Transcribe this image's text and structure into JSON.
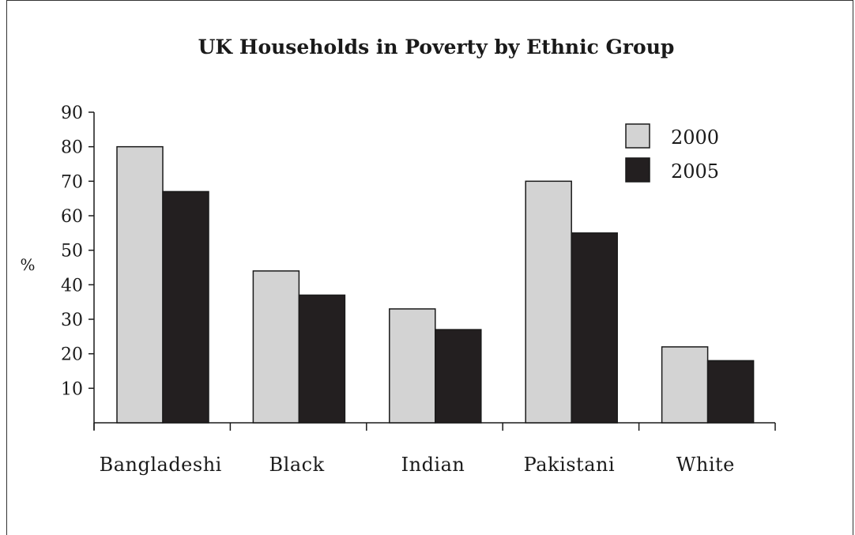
{
  "chart_data": {
    "type": "bar",
    "title": "UK Households in Poverty by Ethnic Group",
    "ylabel": "%",
    "xlabel": "",
    "categories": [
      "Bangladeshi",
      "Black",
      "Indian",
      "Pakistani",
      "White"
    ],
    "series": [
      {
        "name": "2000",
        "values": [
          80,
          44,
          33,
          70,
          22
        ],
        "color": "#d3d3d3"
      },
      {
        "name": "2005",
        "values": [
          67,
          37,
          27,
          55,
          18
        ],
        "color": "#231f20"
      }
    ],
    "ylim": [
      0,
      90
    ],
    "yticks": [
      10,
      20,
      30,
      40,
      50,
      60,
      70,
      80,
      90
    ],
    "grid": false,
    "legend_position": "top-right"
  }
}
